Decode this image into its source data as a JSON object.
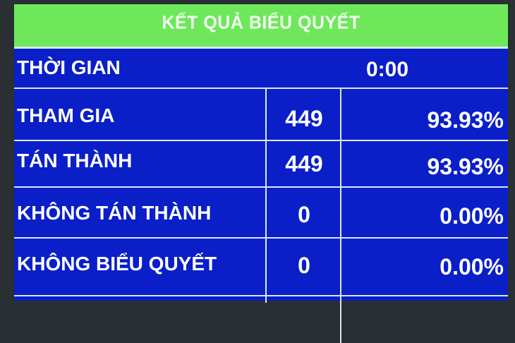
{
  "title": "KẾT QUẢ BIỂU QUYẾT",
  "time": {
    "label": "THỜI GIAN",
    "value": "0:00"
  },
  "rows": [
    {
      "label": "THAM GIA",
      "count": "449",
      "percent": "93.93%"
    },
    {
      "label": "TÁN THÀNH",
      "count": "449",
      "percent": "93.93%"
    },
    {
      "label": "KHÔNG TÁN THÀNH",
      "count": "0",
      "percent": "0.00%"
    },
    {
      "label": "KHÔNG BIỂU QUYẾT",
      "count": "0",
      "percent": "0.00%"
    }
  ],
  "colors": {
    "header": "#6ee85a",
    "body": "#0a1fc8",
    "text": "#ffffff"
  }
}
